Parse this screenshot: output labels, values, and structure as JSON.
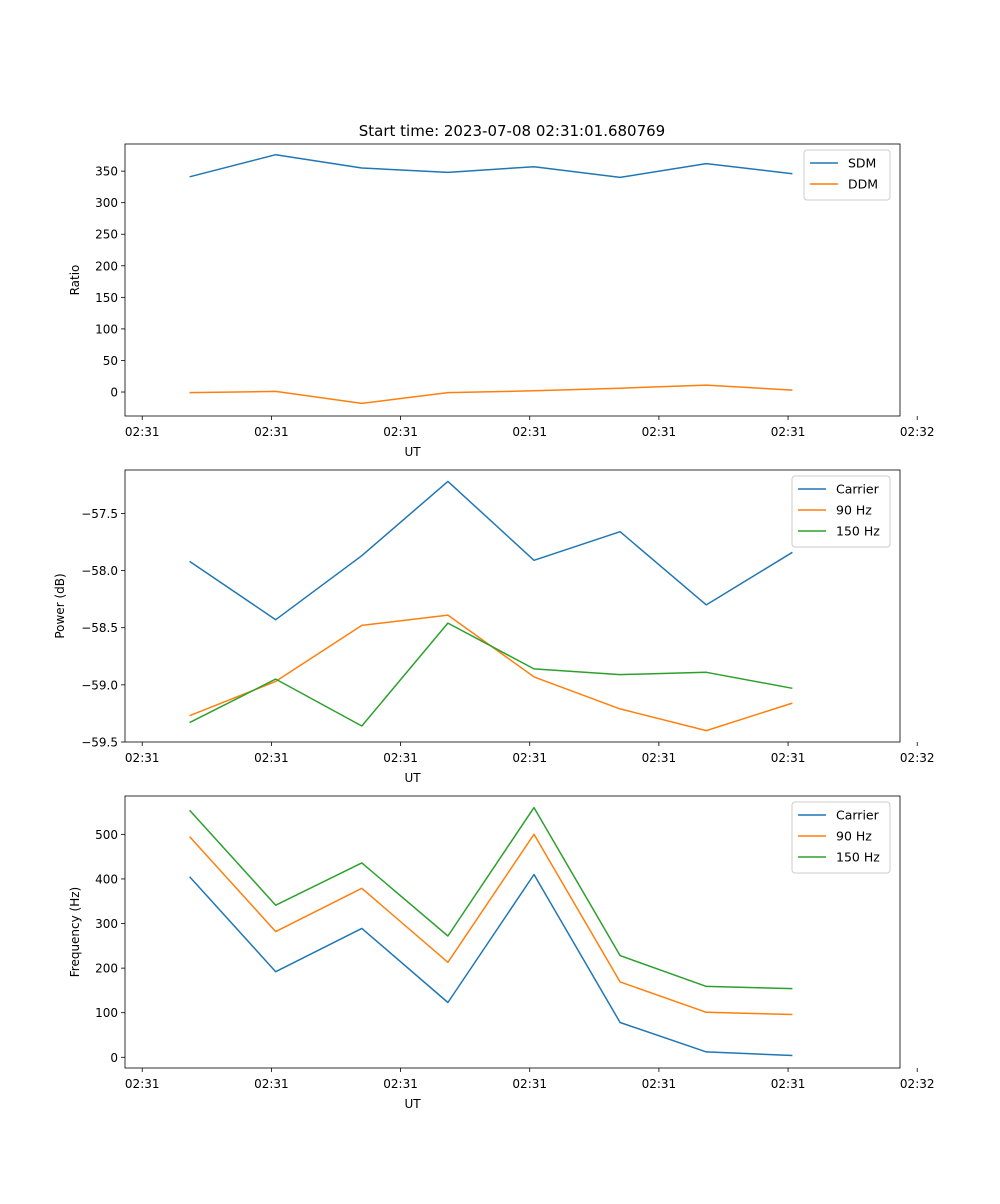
{
  "figure": {
    "title": "Start time: 2023-07-08 02:31:01.680769"
  },
  "colors": {
    "blue": "#1f77b4",
    "orange": "#ff7f0e",
    "green": "#2ca02c"
  },
  "chart_data": [
    {
      "type": "line",
      "title": "Start time: 2023-07-08 02:31:01.680769",
      "xlabel": "UT",
      "ylabel": "Ratio",
      "x": [
        1,
        2,
        3,
        4,
        5,
        6,
        7,
        8
      ],
      "xlim": [
        0.25,
        9.25
      ],
      "xticks": [
        0.45,
        1.95,
        3.45,
        4.95,
        6.45,
        7.95,
        9.45
      ],
      "xtick_labels": [
        "02:31",
        "02:31",
        "02:31",
        "02:31",
        "02:31",
        "02:31",
        "02:32"
      ],
      "ylim": [
        -38,
        393
      ],
      "yticks": [
        0,
        50,
        100,
        150,
        200,
        250,
        300,
        350
      ],
      "ytick_labels": [
        "0",
        "50",
        "100",
        "150",
        "200",
        "250",
        "300",
        "350"
      ],
      "legend": "top-right",
      "series": [
        {
          "name": "SDM",
          "color": "#1f77b4",
          "values": [
            341,
            376,
            355,
            348,
            357,
            340,
            362,
            346
          ]
        },
        {
          "name": "DDM",
          "color": "#ff7f0e",
          "values": [
            -1,
            1,
            -18,
            -1,
            2,
            6,
            11,
            3
          ]
        }
      ]
    },
    {
      "type": "line",
      "title": "",
      "xlabel": "UT",
      "ylabel": "Power (dB)",
      "x": [
        1,
        2,
        3,
        4,
        5,
        6,
        7,
        8
      ],
      "xlim": [
        0.25,
        9.25
      ],
      "xticks": [
        0.45,
        1.95,
        3.45,
        4.95,
        6.45,
        7.95,
        9.45
      ],
      "xtick_labels": [
        "02:31",
        "02:31",
        "02:31",
        "02:31",
        "02:31",
        "02:31",
        "02:32"
      ],
      "ylim": [
        -59.5,
        -57.12
      ],
      "yticks": [
        -59.5,
        -59.0,
        -58.5,
        -58.0,
        -57.5
      ],
      "ytick_labels": [
        "−59.5",
        "−59.0",
        "−58.5",
        "−58.0",
        "−57.5"
      ],
      "legend": "top-right",
      "series": [
        {
          "name": "Carrier",
          "color": "#1f77b4",
          "values": [
            -57.92,
            -58.43,
            -57.87,
            -57.22,
            -57.91,
            -57.66,
            -58.3,
            -57.84
          ]
        },
        {
          "name": "90 Hz",
          "color": "#ff7f0e",
          "values": [
            -59.27,
            -58.97,
            -58.48,
            -58.39,
            -58.93,
            -59.21,
            -59.4,
            -59.16
          ]
        },
        {
          "name": "150 Hz",
          "color": "#2ca02c",
          "values": [
            -59.33,
            -58.95,
            -59.36,
            -58.46,
            -58.86,
            -58.91,
            -58.89,
            -59.03
          ]
        }
      ]
    },
    {
      "type": "line",
      "title": "",
      "xlabel": "UT",
      "ylabel": "Frequency (Hz)",
      "x": [
        1,
        2,
        3,
        4,
        5,
        6,
        7,
        8
      ],
      "xlim": [
        0.25,
        9.25
      ],
      "xticks": [
        0.45,
        1.95,
        3.45,
        4.95,
        6.45,
        7.95,
        9.45
      ],
      "xtick_labels": [
        "02:31",
        "02:31",
        "02:31",
        "02:31",
        "02:31",
        "02:31",
        "02:32"
      ],
      "ylim": [
        -24,
        586
      ],
      "yticks": [
        0,
        100,
        200,
        300,
        400,
        500
      ],
      "ytick_labels": [
        "0",
        "100",
        "200",
        "300",
        "400",
        "500"
      ],
      "legend": "top-right",
      "series": [
        {
          "name": "Carrier",
          "color": "#1f77b4",
          "values": [
            405,
            192,
            289,
            123,
            410,
            78,
            12,
            4
          ]
        },
        {
          "name": "90 Hz",
          "color": "#ff7f0e",
          "values": [
            495,
            282,
            379,
            213,
            500,
            169,
            101,
            96
          ]
        },
        {
          "name": "150 Hz",
          "color": "#2ca02c",
          "values": [
            554,
            341,
            436,
            272,
            560,
            228,
            159,
            154
          ]
        }
      ]
    }
  ]
}
